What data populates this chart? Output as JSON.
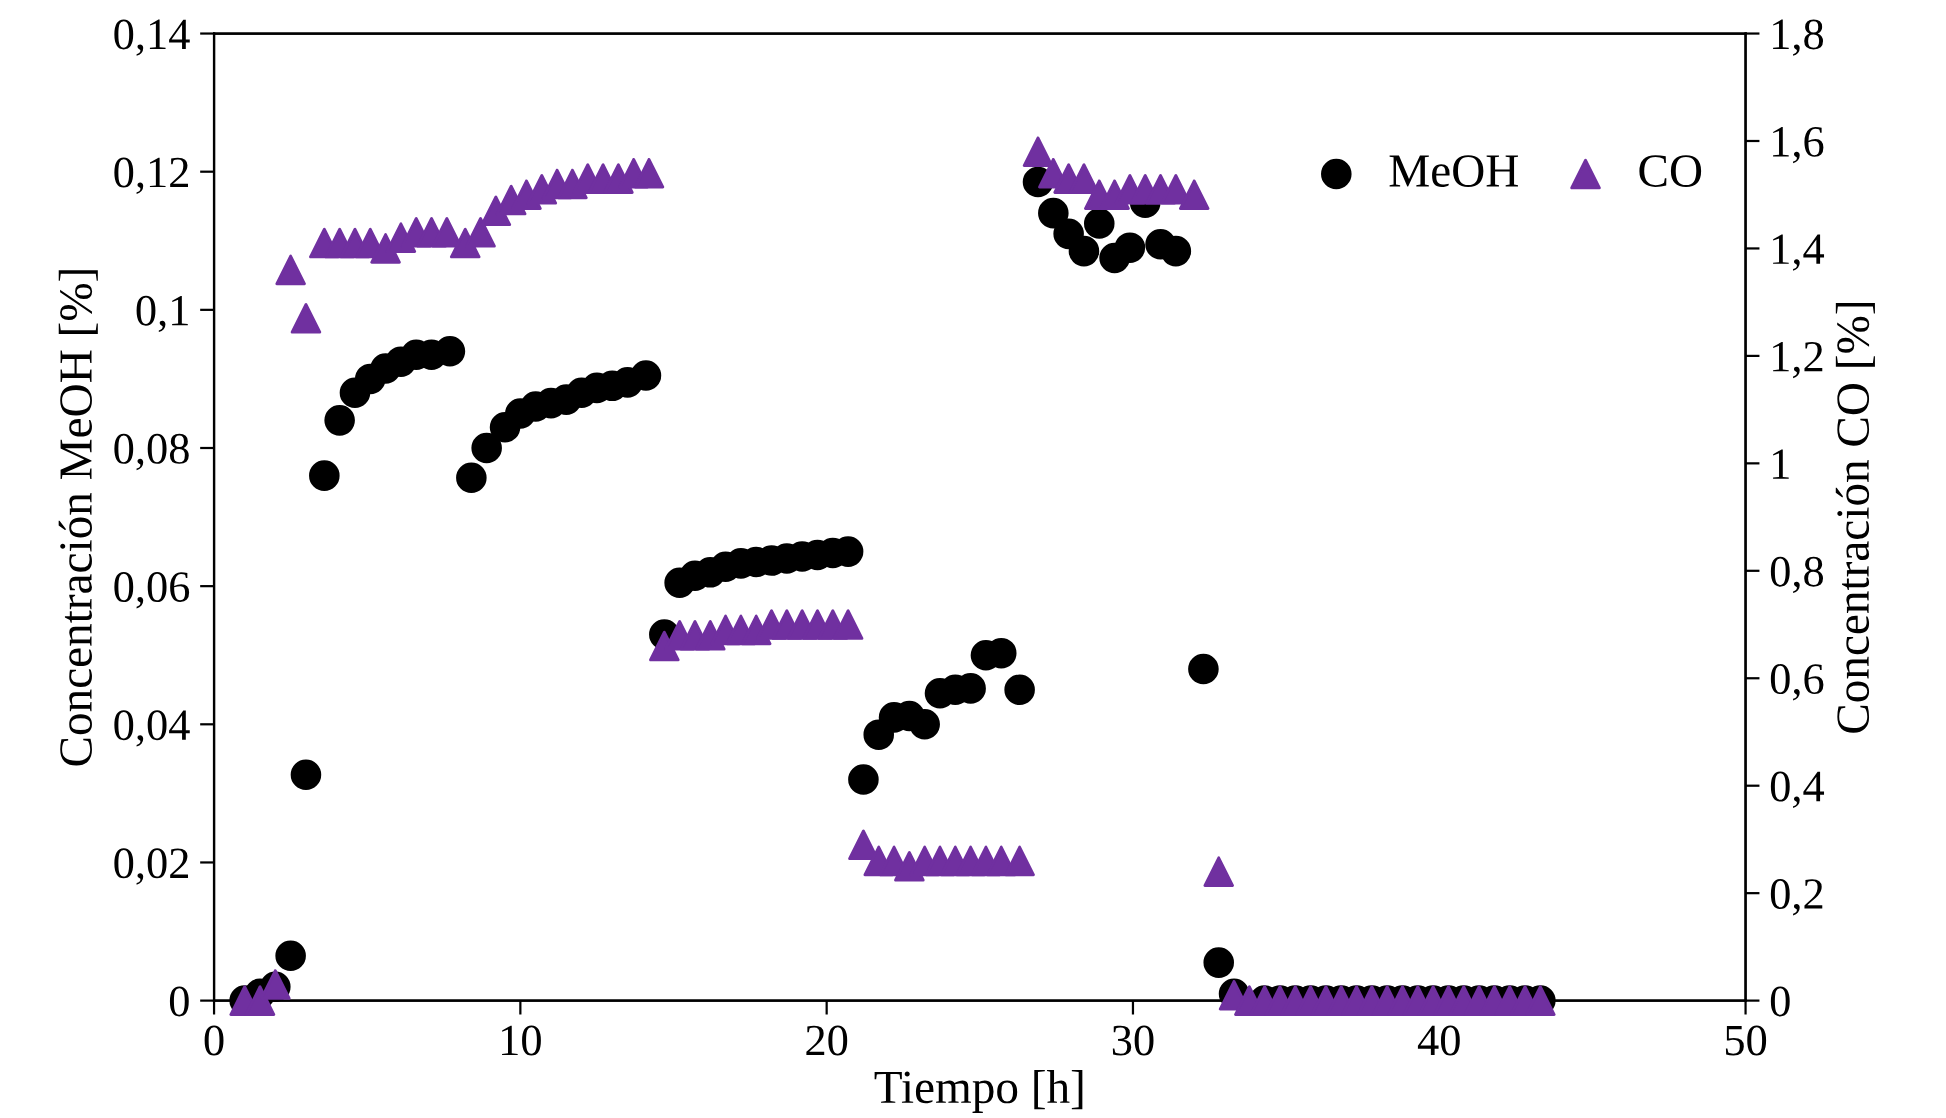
{
  "chart_data": {
    "type": "scatter",
    "xlabel": "Tiempo [h]",
    "ylabel": "Concentración MeOH [%]",
    "y2label": "Concentración CO [%]",
    "xlim": [
      0,
      50
    ],
    "xticks": [
      0,
      10,
      20,
      30,
      40,
      50
    ],
    "ylim": [
      0,
      0.14
    ],
    "yticks": [
      0,
      {
        "value": 0.02,
        "label": "0,02"
      },
      {
        "value": 0.04,
        "label": "0,04"
      },
      {
        "value": 0.06,
        "label": "0,06"
      },
      {
        "value": 0.08,
        "label": "0,08"
      },
      {
        "value": 0.1,
        "label": "0,1"
      },
      {
        "value": 0.12,
        "label": "0,12"
      },
      {
        "value": 0.14,
        "label": "0,14"
      }
    ],
    "y2lim": [
      0,
      1.8
    ],
    "y2ticks": [
      0,
      {
        "value": 0.2,
        "label": "0,2"
      },
      {
        "value": 0.4,
        "label": "0,4"
      },
      {
        "value": 0.6,
        "label": "0,6"
      },
      {
        "value": 0.8,
        "label": "0,8"
      },
      1,
      {
        "value": 1.2,
        "label": "1,2"
      },
      {
        "value": 1.4,
        "label": "1,4"
      },
      {
        "value": 1.6,
        "label": "1,6"
      },
      {
        "value": 1.8,
        "label": "1,8"
      }
    ],
    "grid": false,
    "legend": "top right",
    "series": [
      {
        "name": "MeOH",
        "color": "#000000",
        "marker": "circle",
        "x": [
          1.0,
          1.5,
          2.0,
          2.5,
          3.0,
          3.6,
          4.1,
          4.6,
          5.1,
          5.6,
          6.1,
          6.6,
          7.1,
          7.7,
          8.4,
          8.9,
          9.5,
          10.0,
          10.5,
          11.0,
          11.5,
          12.0,
          12.5,
          13.0,
          13.5,
          14.1,
          14.7,
          15.2,
          15.7,
          16.2,
          16.7,
          17.2,
          17.7,
          18.2,
          18.7,
          19.2,
          19.7,
          20.2,
          20.7,
          21.2,
          21.7,
          22.2,
          22.7,
          23.2,
          23.7,
          24.2,
          24.7,
          25.2,
          25.7,
          26.3,
          26.9,
          27.4,
          27.9,
          28.4,
          28.9,
          29.4,
          29.9,
          30.4,
          30.9,
          31.4,
          32.3,
          32.8,
          33.3,
          34.3,
          34.8,
          35.3,
          35.8,
          36.3,
          36.8,
          37.3,
          37.8,
          38.3,
          38.8,
          39.3,
          39.8,
          40.3,
          40.8,
          41.3,
          41.8,
          42.3,
          42.8,
          43.3
        ],
        "values": [
          0,
          0.001,
          0.002,
          0.0065,
          0.0327,
          0.076,
          0.084,
          0.088,
          0.09,
          0.0915,
          0.0925,
          0.0935,
          0.0935,
          0.094,
          0.0757,
          0.08,
          0.083,
          0.085,
          0.086,
          0.0865,
          0.087,
          0.088,
          0.0887,
          0.089,
          0.0895,
          0.0905,
          0.053,
          0.0605,
          0.0615,
          0.062,
          0.0628,
          0.0633,
          0.0635,
          0.0637,
          0.064,
          0.0643,
          0.0645,
          0.0648,
          0.065,
          0.032,
          0.0385,
          0.041,
          0.0412,
          0.04,
          0.0445,
          0.045,
          0.0452,
          0.05,
          0.0503,
          0.045,
          0.1185,
          0.114,
          0.111,
          0.1085,
          0.1125,
          0.1075,
          0.109,
          0.1155,
          0.1095,
          0.1085,
          0.048,
          0.0055,
          0.001,
          0,
          0,
          0,
          0,
          0,
          0,
          0,
          0,
          0,
          0,
          0,
          0,
          0,
          0,
          0,
          0,
          0,
          0,
          0
        ]
      },
      {
        "name": "CO",
        "color": "#7030a0",
        "marker": "triangle",
        "axis": "y2",
        "x": [
          1.0,
          1.5,
          2.0,
          2.5,
          3.0,
          3.6,
          4.1,
          4.6,
          5.1,
          5.6,
          6.1,
          6.6,
          7.1,
          7.6,
          8.2,
          8.7,
          9.2,
          9.7,
          10.2,
          10.7,
          11.2,
          11.7,
          12.2,
          12.7,
          13.2,
          13.7,
          14.2,
          14.7,
          15.2,
          15.7,
          16.2,
          16.7,
          17.2,
          17.7,
          18.2,
          18.7,
          19.2,
          19.7,
          20.2,
          20.7,
          21.2,
          21.7,
          22.2,
          22.7,
          23.2,
          23.7,
          24.2,
          24.7,
          25.2,
          25.7,
          26.3,
          26.9,
          27.4,
          27.9,
          28.4,
          28.9,
          29.4,
          29.9,
          30.4,
          30.9,
          31.4,
          32.0,
          32.8,
          33.3,
          33.8,
          34.3,
          34.8,
          35.3,
          35.8,
          36.3,
          36.8,
          37.3,
          37.8,
          38.3,
          38.8,
          39.3,
          39.8,
          40.3,
          40.8,
          41.3,
          41.8,
          42.3,
          42.8,
          43.3
        ],
        "values": [
          0,
          0,
          0.03,
          1.36,
          1.27,
          1.41,
          1.41,
          1.41,
          1.41,
          1.4,
          1.42,
          1.43,
          1.43,
          1.43,
          1.41,
          1.43,
          1.47,
          1.49,
          1.5,
          1.51,
          1.52,
          1.52,
          1.53,
          1.53,
          1.53,
          1.54,
          1.54,
          0.66,
          0.68,
          0.68,
          0.68,
          0.69,
          0.69,
          0.69,
          0.7,
          0.7,
          0.7,
          0.7,
          0.7,
          0.7,
          0.29,
          0.26,
          0.26,
          0.25,
          0.26,
          0.26,
          0.26,
          0.26,
          0.26,
          0.26,
          0.26,
          1.58,
          1.54,
          1.53,
          1.53,
          1.5,
          1.5,
          1.51,
          1.51,
          1.51,
          1.51,
          1.5,
          0.24,
          0.01,
          0,
          0,
          0,
          0,
          0,
          0,
          0,
          0,
          0,
          0,
          0,
          0,
          0,
          0,
          0,
          0,
          0,
          0,
          0,
          0
        ]
      }
    ]
  }
}
